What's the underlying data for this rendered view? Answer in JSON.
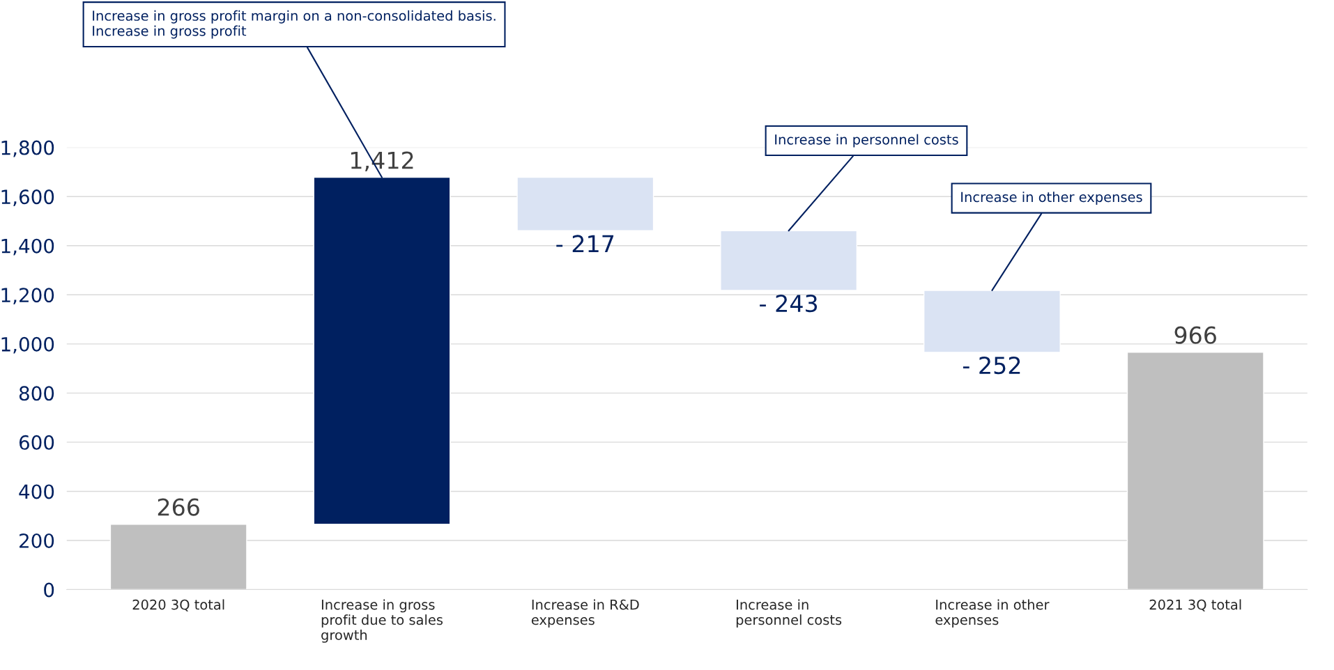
{
  "chart_data": {
    "type": "bar",
    "categories": [
      "2020 3Q total",
      "Increase in gross\nprofit due to sales\ngrowth",
      "Increase in R&D\nexpenses",
      "Increase in\npersonnel costs",
      "Increase in other\nexpenses",
      "2021 3Q total"
    ],
    "values": [
      266,
      1412,
      -217,
      -243,
      -252,
      966
    ],
    "base": [
      0,
      266,
      1678,
      1461,
      1218,
      0
    ],
    "colors": [
      "#bfbfbf",
      "#002060",
      "#dae3f3",
      "#dae3f3",
      "#dae3f3",
      "#bfbfbf"
    ],
    "value_labels": [
      "266",
      "1,412",
      "- 217",
      "- 243",
      "- 252",
      "966"
    ],
    "ylim": [
      0,
      1800
    ],
    "yticks": [
      0,
      200,
      400,
      600,
      800,
      {
        "value": 1000,
        "label": "1,000"
      },
      {
        "value": 1200,
        "label": "1,200"
      },
      {
        "value": 1400,
        "label": "1,400"
      },
      {
        "value": 1600,
        "label": "1,600"
      },
      {
        "value": 1800,
        "label": "1,800"
      }
    ],
    "grid": "y",
    "annotations": [
      {
        "text": "Increase in gross profit margin on a non-consolidated basis.\nIncrease in gross profit",
        "x": "Increase in gross\nprofit due to sales\ngrowth",
        "y": 1678
      },
      {
        "text": "Increase in personnel costs",
        "x": "Increase in\npersonnel costs",
        "y": 1461
      },
      {
        "text": "Increase in other expenses",
        "x": "Increase in other\nexpenses",
        "y": 1218
      }
    ]
  }
}
